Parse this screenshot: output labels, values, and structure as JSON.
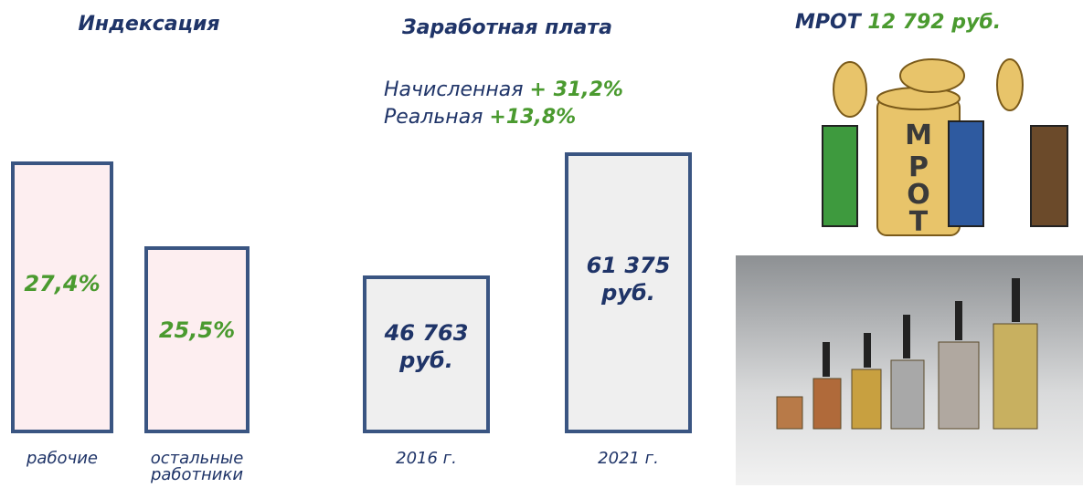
{
  "chart_data": [
    {
      "type": "bar",
      "title": "Индексация",
      "categories": [
        "рабочие",
        "остальные работники"
      ],
      "values": [
        27.4,
        25.5
      ],
      "value_labels": [
        "27,4%",
        "25,5%"
      ],
      "ylim": [
        21.3,
        28.1
      ],
      "color": "#fdeef0",
      "edge_color": "#3a5582",
      "label_color": "#4a9a2f"
    },
    {
      "type": "bar",
      "title": "Заработная плата",
      "categories": [
        "2016 г.",
        "2021 г."
      ],
      "values": [
        46763,
        61375
      ],
      "value_labels": [
        "46 763 руб.",
        "61 375 руб."
      ],
      "ylim": [
        28000,
        64000
      ],
      "color": "#efefef",
      "edge_color": "#3a5582",
      "label_color": "#1f3468",
      "annotations": [
        {
          "label": "Начисленная",
          "value": "+ 31,2%"
        },
        {
          "label": "Реальная",
          "value": "+13,8%"
        }
      ]
    }
  ],
  "mrot": {
    "label": "МРОТ",
    "value": "12 792 руб."
  }
}
